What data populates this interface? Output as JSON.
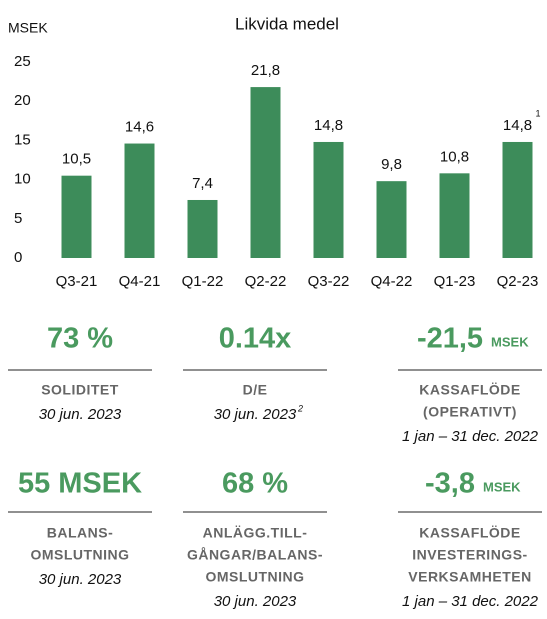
{
  "chart_data": {
    "type": "bar",
    "title": "Likvida medel",
    "y_label": "MSEK",
    "categories": [
      "Q3-21",
      "Q4-21",
      "Q1-22",
      "Q2-22",
      "Q3-22",
      "Q4-22",
      "Q1-23",
      "Q2-23"
    ],
    "values": [
      10.5,
      14.6,
      7.4,
      21.8,
      14.8,
      9.8,
      10.8,
      14.8
    ],
    "value_labels": [
      "10,5",
      "14,6",
      "7,4",
      "21,8",
      "14,8",
      "9,8",
      "10,8",
      "14,8"
    ],
    "annotation": "1",
    "color": "#3d8c5a",
    "ylim": [
      0,
      25
    ],
    "yticks": [
      0,
      5,
      10,
      15,
      20,
      25
    ],
    "grid": false
  },
  "kpis": [
    {
      "value": "73 %",
      "label": [
        "SOLIDITET"
      ],
      "date": "30 jun. 2023"
    },
    {
      "value": "0.14x",
      "label": [
        "D/E"
      ],
      "date": "30 jun. 2023",
      "note": "2"
    },
    {
      "value": "-21,5",
      "unit": "MSEK",
      "label": [
        "KASSAFLÖDE",
        "(OPERATIVT)"
      ],
      "date": "1 jan – 31 dec. 2022"
    },
    {
      "value": "55 MSEK",
      "label": [
        "BALANS-",
        "OMSLUTNING"
      ],
      "date": "30 jun. 2023"
    },
    {
      "value": "68 %",
      "label": [
        "ANLÄGG.TILL-",
        "GÅNGAR/BALANS-",
        "OMSLUTNING"
      ],
      "date": "30 jun. 2023"
    },
    {
      "value": "-3,8",
      "unit": "MSEK",
      "label": [
        "KASSAFLÖDE",
        "INVESTERINGS-",
        "VERKSAMHETEN"
      ],
      "date": "1 jan – 31 dec. 2022"
    }
  ]
}
